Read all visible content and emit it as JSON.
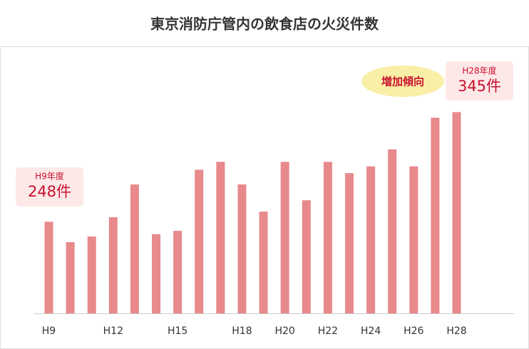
{
  "chart_data": {
    "type": "bar",
    "title": "東京消防庁管内の飲食店の火災件数",
    "categories": [
      "H9",
      null,
      null,
      "H12",
      null,
      null,
      "H15",
      null,
      null,
      "H18",
      null,
      "H20",
      null,
      "H22",
      null,
      "H24",
      null,
      "H26",
      null,
      "H28"
    ],
    "values": [
      248,
      230,
      235,
      252,
      281,
      237,
      240,
      294,
      301,
      281,
      257,
      301,
      267,
      301,
      291,
      297,
      312,
      297,
      340,
      345
    ],
    "value_labels": [
      "248件",
      null,
      null,
      null,
      null,
      null,
      null,
      null,
      null,
      null,
      null,
      null,
      null,
      null,
      null,
      null,
      null,
      null,
      null,
      "345件"
    ],
    "callouts": [
      "H9年度",
      "H28年度"
    ],
    "annotation": "増加傾向",
    "color": "#e8898b",
    "ylim": [
      167,
      400
    ]
  }
}
